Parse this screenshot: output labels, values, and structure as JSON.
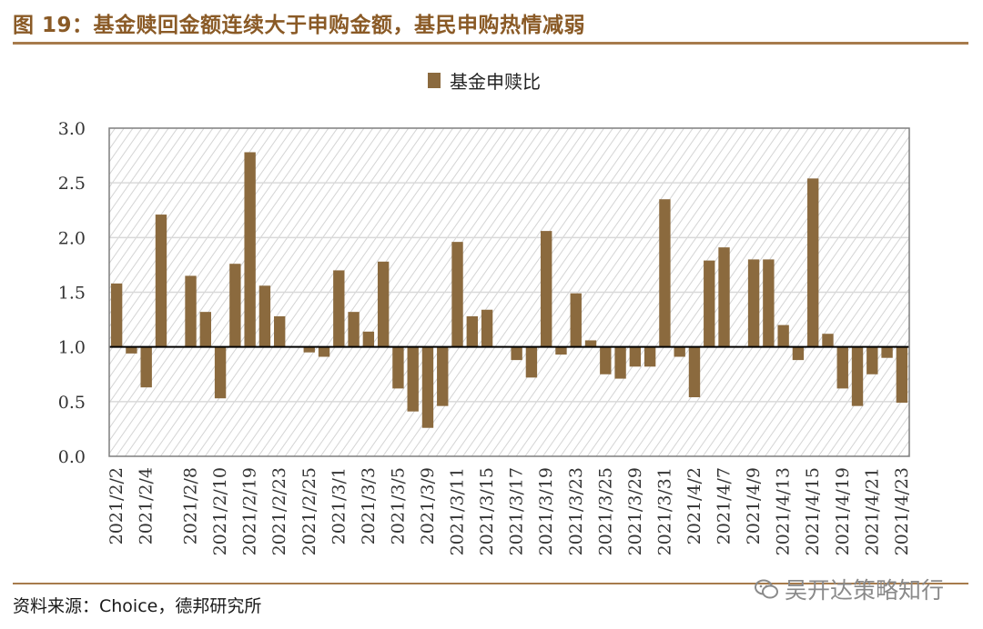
{
  "figure": {
    "title": "图 19：基金赎回金额连续大于申购金额，基民申购热情减弱",
    "source": "资料来源：Choice，德邦研究所",
    "watermark": "吴开达策略知行"
  },
  "colors": {
    "bar": "#8b6a3e",
    "accent": "#8a5a26",
    "rule": "#a77b4c",
    "grid": "#d9d9d9"
  },
  "chart_data": {
    "type": "bar",
    "baseline": 1.0,
    "ylim": [
      0,
      3
    ],
    "yticks": [
      "0.0",
      "0.5",
      "1.0",
      "1.5",
      "2.0",
      "2.5",
      "3.0"
    ],
    "grid": true,
    "legend": "top-center",
    "series": [
      {
        "name": "基金申赎比",
        "values": [
          1.58,
          0.94,
          0.63,
          2.21,
          1.0,
          1.65,
          1.32,
          0.53,
          1.76,
          2.78,
          1.56,
          1.28,
          1.0,
          0.95,
          0.91,
          1.7,
          1.32,
          1.14,
          1.78,
          0.62,
          0.41,
          0.26,
          0.46,
          1.96,
          1.28,
          1.34,
          1.0,
          0.88,
          0.72,
          2.06,
          0.93,
          1.49,
          1.06,
          0.75,
          0.71,
          0.82,
          0.82,
          2.35,
          0.91,
          0.54,
          1.79,
          1.91,
          1.0,
          1.8,
          1.8,
          1.2,
          0.88,
          2.54,
          1.12,
          0.62,
          0.46,
          0.75,
          0.9,
          0.49
        ]
      }
    ],
    "x_tick_labels": [
      {
        "index": 0,
        "label": "2021/2/2"
      },
      {
        "index": 2,
        "label": "2021/2/4"
      },
      {
        "index": 5,
        "label": "2021/2/8"
      },
      {
        "index": 7,
        "label": "2021/2/10"
      },
      {
        "index": 9,
        "label": "2021/2/19"
      },
      {
        "index": 11,
        "label": "2021/2/23"
      },
      {
        "index": 13,
        "label": "2021/2/25"
      },
      {
        "index": 15,
        "label": "2021/3/1"
      },
      {
        "index": 17,
        "label": "2021/3/3"
      },
      {
        "index": 19,
        "label": "2021/3/5"
      },
      {
        "index": 21,
        "label": "2021/3/9"
      },
      {
        "index": 23,
        "label": "2021/3/11"
      },
      {
        "index": 25,
        "label": "2021/3/15"
      },
      {
        "index": 27,
        "label": "2021/3/17"
      },
      {
        "index": 29,
        "label": "2021/3/19"
      },
      {
        "index": 31,
        "label": "2021/3/23"
      },
      {
        "index": 33,
        "label": "2021/3/25"
      },
      {
        "index": 35,
        "label": "2021/3/29"
      },
      {
        "index": 37,
        "label": "2021/3/31"
      },
      {
        "index": 39,
        "label": "2021/4/2"
      },
      {
        "index": 41,
        "label": "2021/4/7"
      },
      {
        "index": 43,
        "label": "2021/4/9"
      },
      {
        "index": 45,
        "label": "2021/4/13"
      },
      {
        "index": 47,
        "label": "2021/4/15"
      },
      {
        "index": 49,
        "label": "2021/4/19"
      },
      {
        "index": 51,
        "label": "2021/4/21"
      },
      {
        "index": 53,
        "label": "2021/4/23"
      }
    ]
  }
}
